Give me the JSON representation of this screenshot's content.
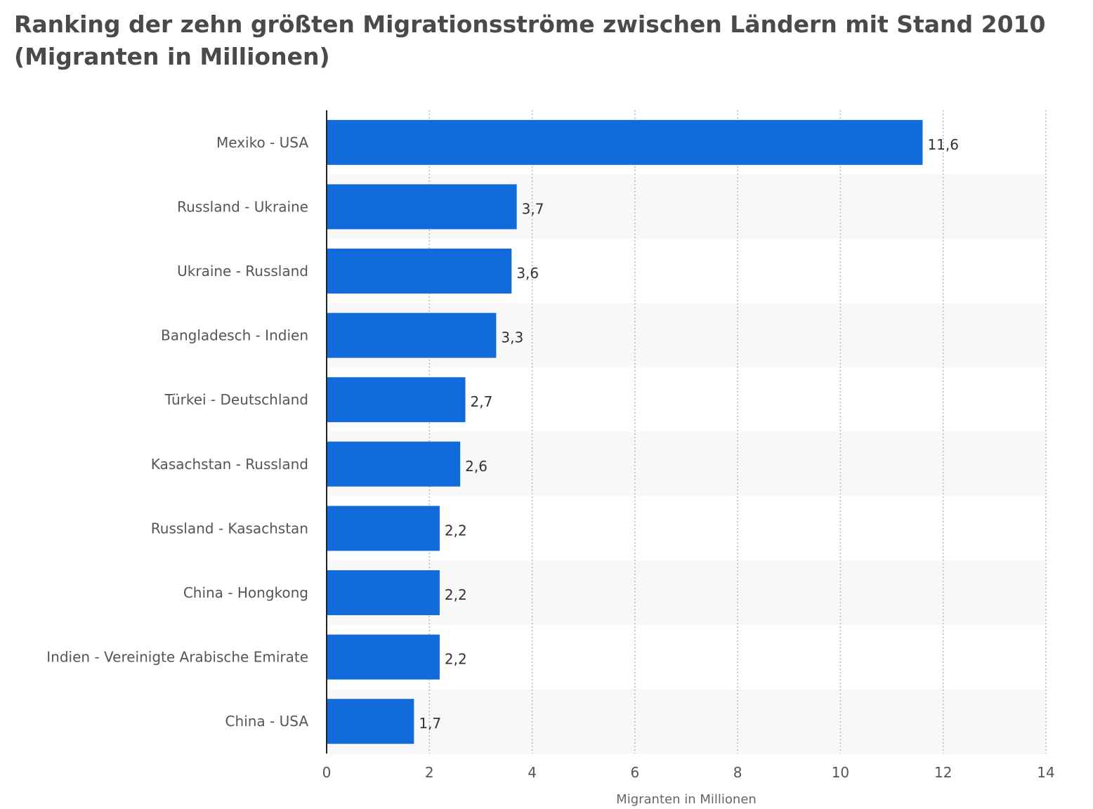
{
  "title": "Ranking der zehn größten Migrationsströme zwischen Ländern mit Stand 2010 (Migranten in Millionen)",
  "chart_data": {
    "type": "bar",
    "orientation": "horizontal",
    "title": "Ranking der zehn größten Migrationsströme zwischen Ländern mit Stand 2010 (Migranten in Millionen)",
    "categories": [
      "Mexiko - USA",
      "Russland - Ukraine",
      "Ukraine - Russland",
      "Bangladesch - Indien",
      "Türkei - Deutschland",
      "Kasachstan - Russland",
      "Russland - Kasachstan",
      "China - Hongkong",
      "Indien - Vereinigte Arabische Emirate",
      "China - USA"
    ],
    "values": [
      11.6,
      3.7,
      3.6,
      3.3,
      2.7,
      2.6,
      2.2,
      2.2,
      2.2,
      1.7
    ],
    "value_labels": [
      "11,6",
      "3,7",
      "3,6",
      "3,3",
      "2,7",
      "2,6",
      "2,2",
      "2,2",
      "2,2",
      "1,7"
    ],
    "xlabel": "Migranten in Millionen",
    "ylabel": "",
    "xlim": [
      0,
      14
    ],
    "xticks": [
      0,
      2,
      4,
      6,
      8,
      10,
      12,
      14
    ],
    "xtick_labels": [
      "0",
      "2",
      "4",
      "6",
      "8",
      "10",
      "12",
      "14"
    ],
    "grid": "vertical dotted",
    "bar_color": "#116bdb",
    "band_color": "#f8f8f8"
  }
}
